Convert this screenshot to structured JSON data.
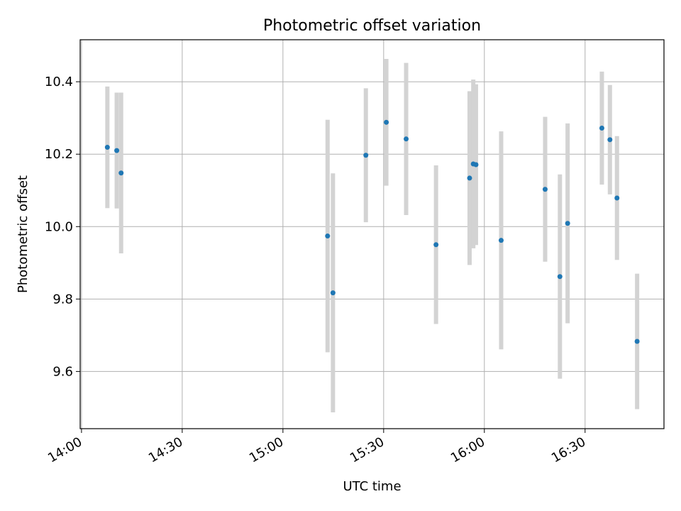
{
  "chart_data": {
    "type": "scatter",
    "title": "Photometric offset variation",
    "xlabel": "UTC time",
    "ylabel": "Photometric offset",
    "x_ticks": [
      "14:00",
      "14:30",
      "15:00",
      "15:30",
      "16:00",
      "16:30"
    ],
    "x_tick_minutes": [
      840,
      870,
      900,
      930,
      960,
      990
    ],
    "xlim_minutes": [
      839.6,
      1013.5
    ],
    "y_ticks": [
      "9.6",
      "9.8",
      "10.0",
      "10.2",
      "10.4"
    ],
    "y_tick_values": [
      9.6,
      9.8,
      10.0,
      10.2,
      10.4
    ],
    "ylim": [
      9.442,
      10.516
    ],
    "grid": true,
    "colors": {
      "points": "#1f77b4",
      "errorbars": "#d3d3d3",
      "grid": "#b0b0b0"
    },
    "points": [
      {
        "t": "14:07.7",
        "y": 10.219,
        "err": 0.168
      },
      {
        "t": "14:10.5",
        "y": 10.21,
        "err": 0.16
      },
      {
        "t": "14:11.8",
        "y": 10.148,
        "err": 0.222
      },
      {
        "t": "15:13.3",
        "y": 9.974,
        "err": 0.321
      },
      {
        "t": "15:14.9",
        "y": 9.817,
        "err": 0.33
      },
      {
        "t": "15:24.7",
        "y": 10.197,
        "err": 0.185
      },
      {
        "t": "15:30.8",
        "y": 10.288,
        "err": 0.175
      },
      {
        "t": "15:36.7",
        "y": 10.242,
        "err": 0.21
      },
      {
        "t": "15:45.6",
        "y": 9.95,
        "err": 0.219
      },
      {
        "t": "15:55.6",
        "y": 10.134,
        "err": 0.24
      },
      {
        "t": "15:56.7",
        "y": 10.173,
        "err": 0.233
      },
      {
        "t": "15:57.5",
        "y": 10.171,
        "err": 0.222
      },
      {
        "t": "16:05.0",
        "y": 9.962,
        "err": 0.301
      },
      {
        "t": "16:18.1",
        "y": 10.103,
        "err": 0.2
      },
      {
        "t": "16:22.5",
        "y": 9.862,
        "err": 0.282
      },
      {
        "t": "16:24.8",
        "y": 10.009,
        "err": 0.276
      },
      {
        "t": "16:35.0",
        "y": 10.272,
        "err": 0.156
      },
      {
        "t": "16:37.4",
        "y": 10.24,
        "err": 0.151
      },
      {
        "t": "16:39.5",
        "y": 10.079,
        "err": 0.171
      },
      {
        "t": "16:45.5",
        "y": 9.683,
        "err": 0.187
      }
    ]
  }
}
